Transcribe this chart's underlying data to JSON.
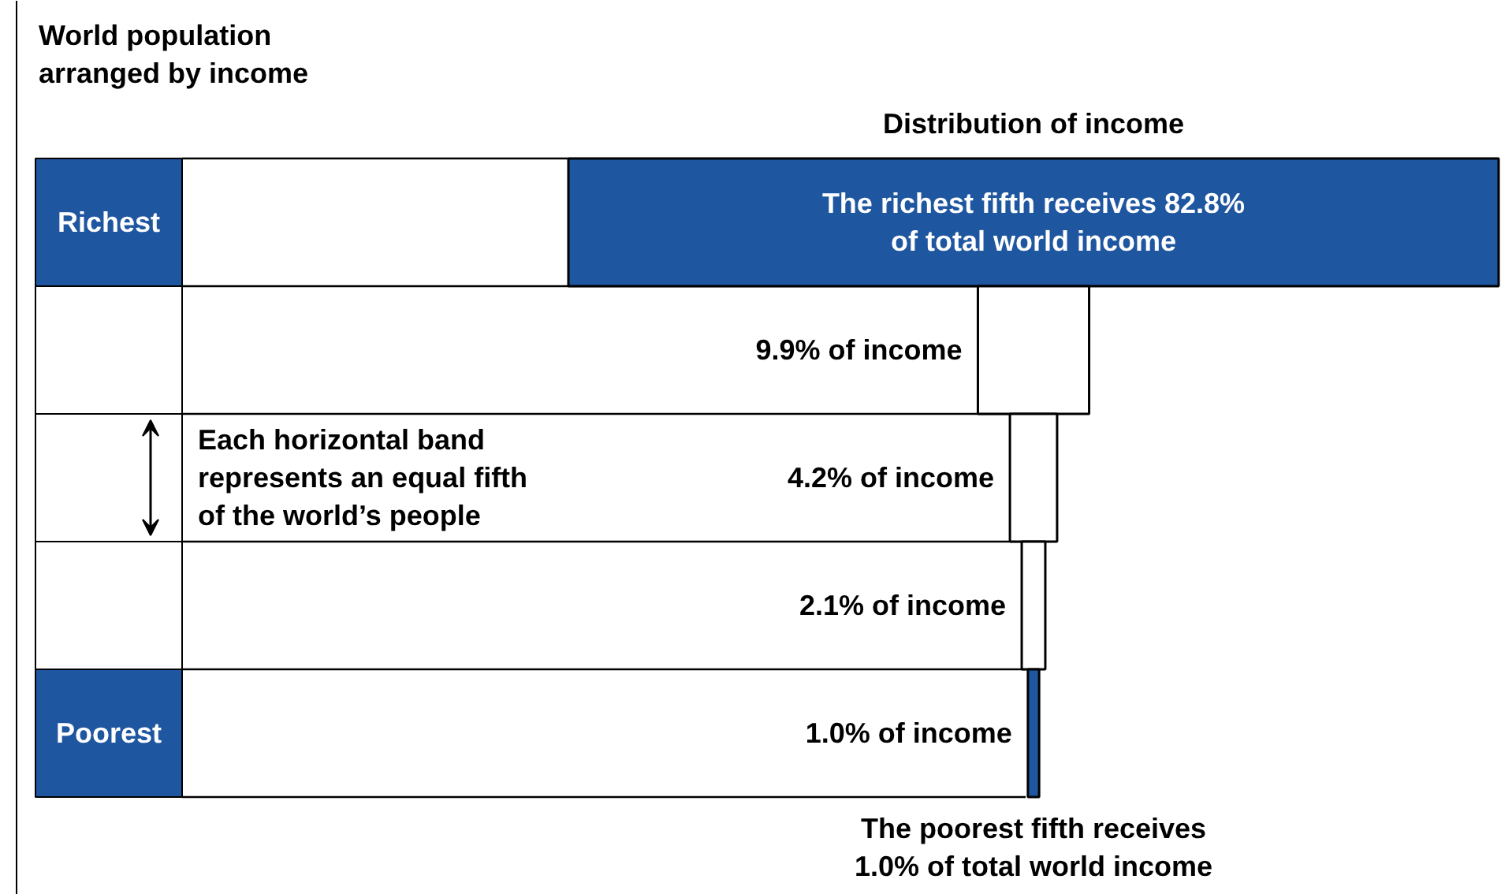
{
  "chart_data": {
    "type": "other",
    "title": "Distribution of income",
    "ylabel": "World population arranged by income",
    "categories": [
      "Richest",
      null,
      null,
      null,
      "Poorest"
    ],
    "values": [
      82.8,
      9.9,
      4.2,
      2.1,
      1.0
    ],
    "colors": [
      "#1f56a0",
      "#ffffff",
      "#ffffff",
      "#ffffff",
      "#1f56a0"
    ],
    "value_labels": [
      "The richest fifth receives 82.8% of total world income",
      "9.9% of income",
      "4.2% of income",
      "2.1% of income",
      "1.0% of income"
    ],
    "annotations": [
      "Each horizontal band represents an equal fifth of the world’s people",
      "The poorest fifth receives 1.0% of total world income"
    ]
  }
}
